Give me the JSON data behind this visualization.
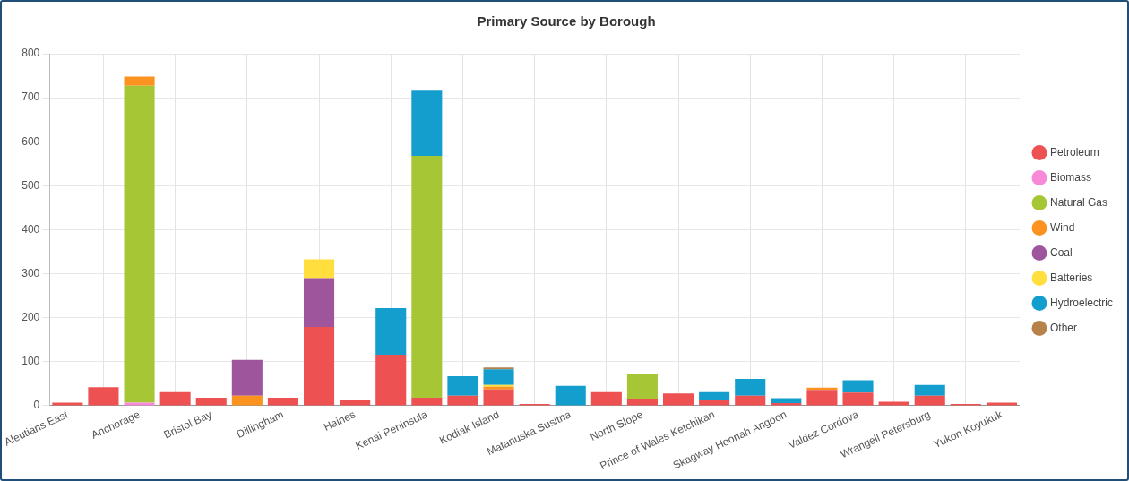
{
  "chart_data": {
    "type": "bar",
    "title": "Primary Source by Borough",
    "stacked": true,
    "grid": true,
    "legend": "right",
    "categories": [
      "Aleutians East",
      null,
      "Anchorage",
      null,
      "Bristol Bay",
      null,
      "Dillingham",
      null,
      "Haines",
      null,
      "Kenai Peninsula",
      null,
      "Kodiak Island",
      null,
      "Matanuska Susitna",
      null,
      "North Slope",
      null,
      "Prince of Wales Ketchikan",
      null,
      "Skagway Hoonah Angoon",
      null,
      "Valdez Cordova",
      null,
      "Wrangell Petersburg",
      null,
      "Yukon Koyukuk"
    ],
    "ylim": [
      0,
      800
    ],
    "yticks": [
      0,
      100,
      200,
      300,
      400,
      500,
      600,
      700,
      800
    ],
    "series": [
      {
        "name": "Petroleum",
        "color": "#ed5151",
        "values": [
          7,
          42,
          null,
          31,
          18,
          null,
          18,
          179,
          12,
          116,
          18,
          23,
          37,
          4,
          null,
          31,
          15,
          28,
          12,
          23,
          6,
          36,
          30,
          9,
          23,
          4,
          7
        ]
      },
      {
        "name": "Biomass",
        "color": "#f789d8",
        "values": [
          null,
          null,
          7,
          null,
          null,
          null,
          null,
          null,
          null,
          null,
          null,
          null,
          null,
          null,
          null,
          null,
          null,
          null,
          null,
          null,
          null,
          null,
          null,
          null,
          null,
          null,
          null
        ]
      },
      {
        "name": "Natural Gas",
        "color": "#a7c636",
        "values": [
          null,
          null,
          720,
          null,
          null,
          null,
          null,
          null,
          null,
          null,
          550,
          null,
          null,
          null,
          null,
          null,
          56,
          null,
          null,
          null,
          null,
          null,
          null,
          null,
          null,
          null,
          null
        ]
      },
      {
        "name": "Wind",
        "color": "#fc921f",
        "values": [
          null,
          null,
          21,
          null,
          null,
          23,
          null,
          null,
          null,
          null,
          null,
          null,
          6,
          null,
          null,
          null,
          null,
          null,
          null,
          null,
          null,
          5,
          null,
          null,
          null,
          null,
          null
        ]
      },
      {
        "name": "Coal",
        "color": "#9e559c",
        "values": [
          null,
          null,
          null,
          null,
          null,
          81,
          null,
          111,
          null,
          null,
          null,
          null,
          null,
          null,
          null,
          null,
          null,
          null,
          null,
          null,
          null,
          null,
          null,
          null,
          null,
          null,
          null
        ]
      },
      {
        "name": "Batteries",
        "color": "#ffde3e",
        "values": [
          null,
          null,
          null,
          null,
          null,
          null,
          null,
          43,
          null,
          null,
          null,
          null,
          4,
          null,
          null,
          null,
          null,
          null,
          null,
          null,
          null,
          null,
          null,
          null,
          null,
          null,
          null
        ]
      },
      {
        "name": "Hydroelectric",
        "color": "#149ece",
        "values": [
          null,
          null,
          null,
          null,
          null,
          null,
          null,
          null,
          null,
          106,
          148,
          44,
          36,
          null,
          45,
          null,
          null,
          null,
          19,
          38,
          11,
          null,
          28,
          null,
          24,
          null,
          null
        ]
      },
      {
        "name": "Other",
        "color": "#b7814a",
        "values": [
          null,
          null,
          null,
          null,
          null,
          null,
          null,
          null,
          null,
          null,
          null,
          null,
          4,
          null,
          null,
          null,
          null,
          null,
          null,
          null,
          null,
          null,
          null,
          null,
          null,
          null,
          null
        ]
      }
    ]
  }
}
